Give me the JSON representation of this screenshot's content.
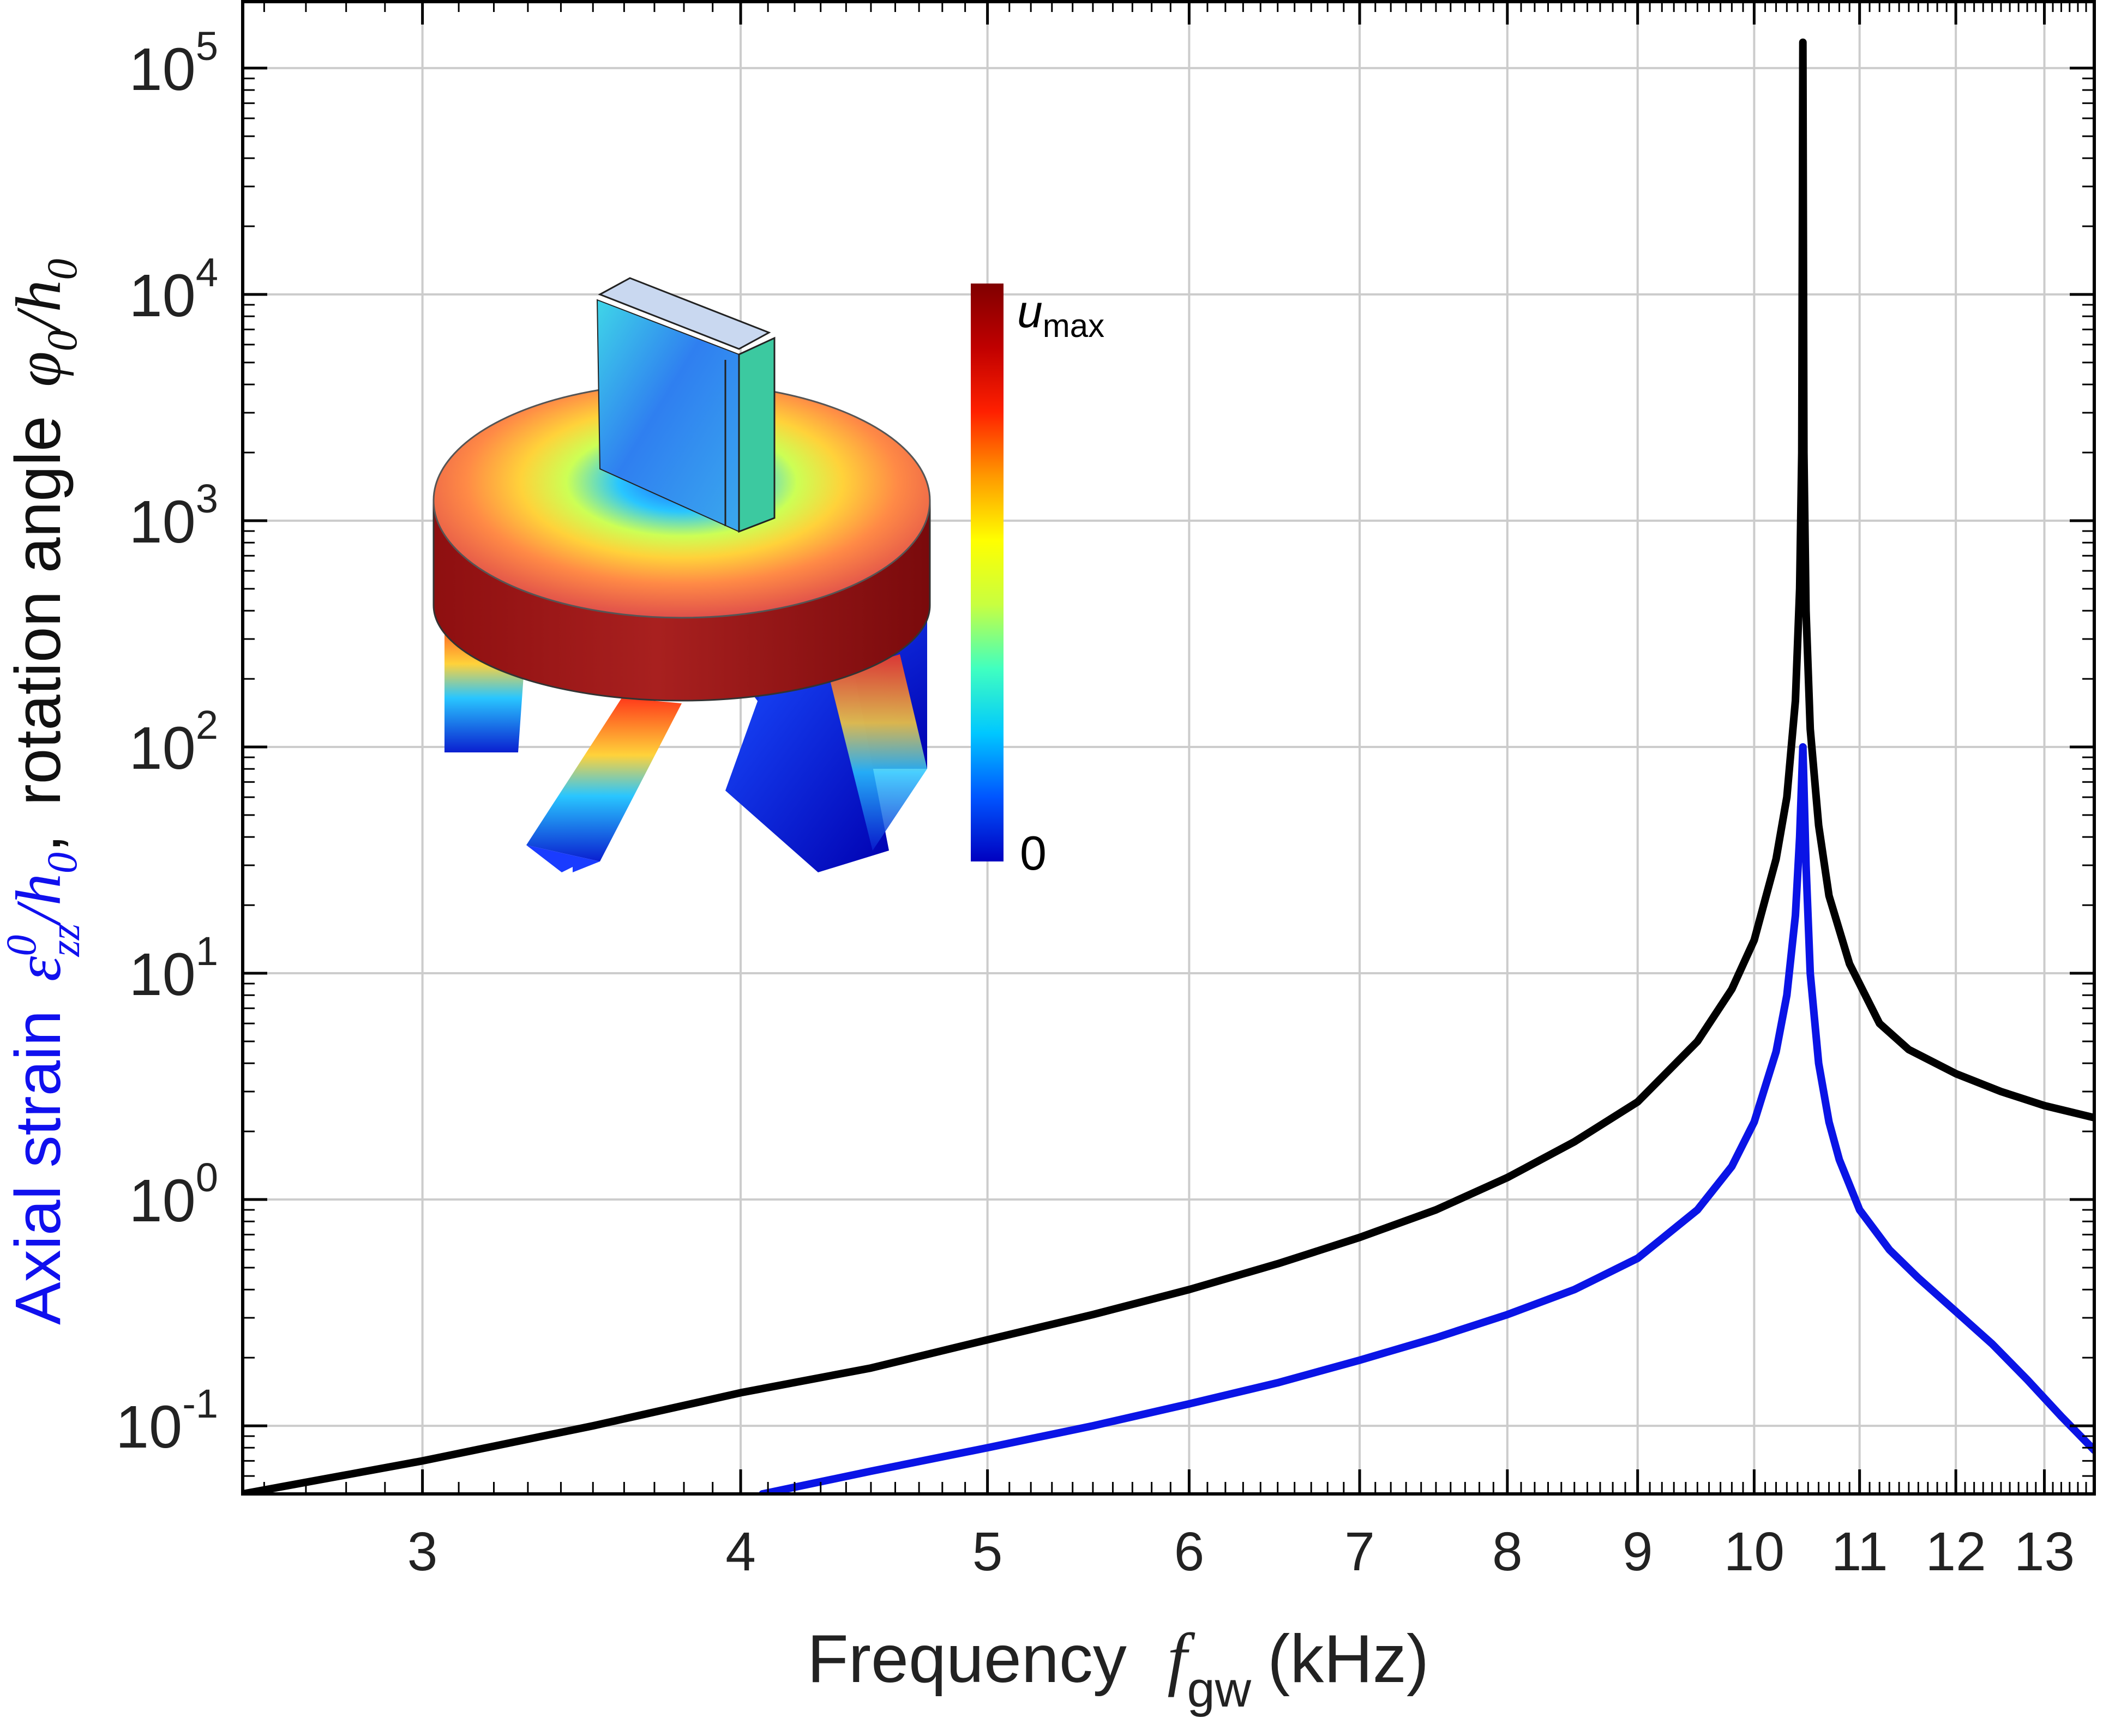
{
  "chart_data": {
    "type": "line",
    "xscale": "log",
    "yscale": "log",
    "xlim": [
      2.55,
      13.6
    ],
    "ylim": [
      0.05,
      200000
    ],
    "grid": true,
    "xticks": [
      3,
      4,
      5,
      6,
      7,
      8,
      9,
      10,
      11,
      12,
      13
    ],
    "xtick_labels": [
      "3",
      "4",
      "5",
      "6",
      "7",
      "8",
      "9",
      "10",
      "11",
      "12",
      "13"
    ],
    "yticks": [
      0.1,
      1,
      10,
      100,
      1000,
      10000,
      100000
    ],
    "ytick_labels": [
      {
        "base": "10",
        "exp": "-1"
      },
      {
        "base": "10",
        "exp": "0"
      },
      {
        "base": "10",
        "exp": "1"
      },
      {
        "base": "10",
        "exp": "2"
      },
      {
        "base": "10",
        "exp": "3"
      },
      {
        "base": "10",
        "exp": "4"
      },
      {
        "base": "10",
        "exp": "5"
      }
    ],
    "xlabel": {
      "text": "Frequency",
      "symbol": "f",
      "subscript": "gw",
      "unit": "(kHz)"
    },
    "ylabel": {
      "part1": "Axial strain",
      "part1_symbol": "ε",
      "part1_sup": "0",
      "part1_sub": "zz",
      "part1_div": "/h",
      "part1_div_sub": "0",
      "sep": ",",
      "part2": "rotation angle",
      "part2_symbol": "φ",
      "part2_sub": "0",
      "part2_div": "/h",
      "part2_div_sub": "0"
    },
    "resonance_khz": 10.45,
    "series": [
      {
        "color": "#000000",
        "x": [
          2.55,
          3.0,
          3.5,
          4.0,
          4.5,
          5.0,
          5.5,
          6.0,
          6.5,
          7.0,
          7.5,
          8.0,
          8.5,
          9.0,
          9.5,
          9.8,
          10.0,
          10.2,
          10.3,
          10.38,
          10.42,
          10.44,
          10.45,
          10.46,
          10.48,
          10.52,
          10.6,
          10.7,
          10.9,
          11.2,
          11.5,
          12.0,
          12.5,
          13.0,
          13.6
        ],
        "y": [
          0.05,
          0.07,
          0.1,
          0.14,
          0.18,
          0.24,
          0.31,
          0.4,
          0.52,
          0.68,
          0.9,
          1.25,
          1.8,
          2.7,
          5.0,
          8.5,
          14.0,
          32.0,
          60.0,
          160.0,
          500.0,
          2000.0,
          130000.0,
          2000.0,
          400.0,
          120.0,
          45.0,
          22.0,
          11.0,
          6.0,
          4.6,
          3.6,
          3.0,
          2.6,
          2.3
        ]
      },
      {
        "color": "#0a14e6",
        "x": [
          4.08,
          4.5,
          5.0,
          5.5,
          6.0,
          6.5,
          7.0,
          7.5,
          8.0,
          8.5,
          9.0,
          9.5,
          9.8,
          10.0,
          10.2,
          10.3,
          10.38,
          10.42,
          10.45,
          10.48,
          10.52,
          10.6,
          10.7,
          10.8,
          11.0,
          11.3,
          11.6,
          12.0,
          12.4,
          12.8,
          13.2,
          13.6
        ],
        "y": [
          0.05,
          0.063,
          0.08,
          0.1,
          0.125,
          0.155,
          0.195,
          0.245,
          0.31,
          0.4,
          0.55,
          0.9,
          1.4,
          2.2,
          4.5,
          8.0,
          18.0,
          40.0,
          100.0,
          30.0,
          10.0,
          4.0,
          2.2,
          1.5,
          0.9,
          0.6,
          0.45,
          0.32,
          0.23,
          0.16,
          0.11,
          0.078
        ]
      }
    ],
    "inset": {
      "colorbar_labels": {
        "max_symbol": "u",
        "max_sub": "max",
        "min": "0"
      },
      "colorbar_colors": [
        "#0000c0",
        "#0055ff",
        "#00c8ff",
        "#40ffc0",
        "#c8ff40",
        "#ffff00",
        "#ff9900",
        "#ff2000",
        "#c00000",
        "#800000"
      ]
    }
  }
}
